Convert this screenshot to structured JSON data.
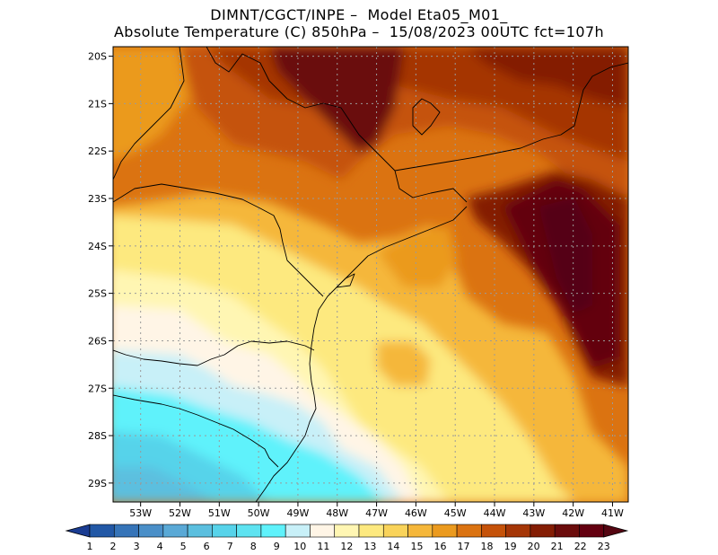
{
  "header": {
    "line1": "DIMNT/CGCT/INPE –  Model Eta05_M01_",
    "line2": "Absolute Temperature (C) 850hPa –  15/08/2023 00UTC fct=107h"
  },
  "map": {
    "lat_labels": [
      "20S",
      "21S",
      "22S",
      "23S",
      "24S",
      "25S",
      "26S",
      "27S",
      "28S",
      "29S"
    ],
    "lon_labels": [
      "53W",
      "52W",
      "51W",
      "50W",
      "49W",
      "48W",
      "47W",
      "46W",
      "45W",
      "44W",
      "43W",
      "42W",
      "41W"
    ],
    "extent": {
      "lon_min": -53.7,
      "lon_max": -40.6,
      "lat_min": -29.4,
      "lat_max": -19.8
    }
  },
  "colorbar": {
    "labels": [
      "1",
      "2",
      "3",
      "4",
      "5",
      "6",
      "7",
      "8",
      "9",
      "10",
      "11",
      "12",
      "13",
      "14",
      "15",
      "16",
      "17",
      "18",
      "19",
      "20",
      "21",
      "22",
      "23"
    ],
    "colors": [
      "#1a3c92",
      "#2258a6",
      "#3674b8",
      "#4a8fc8",
      "#5aa9d6",
      "#5bbfdf",
      "#57d3ea",
      "#5ee3f1",
      "#5ff2fb",
      "#c8f0f8",
      "#fff5e6",
      "#fff6b3",
      "#fde97f",
      "#f9d35a",
      "#f5b73a",
      "#eb9a1e",
      "#db7311",
      "#c55209",
      "#a53606",
      "#841d04",
      "#6b0c0c",
      "#640010",
      "#550612"
    ]
  }
}
